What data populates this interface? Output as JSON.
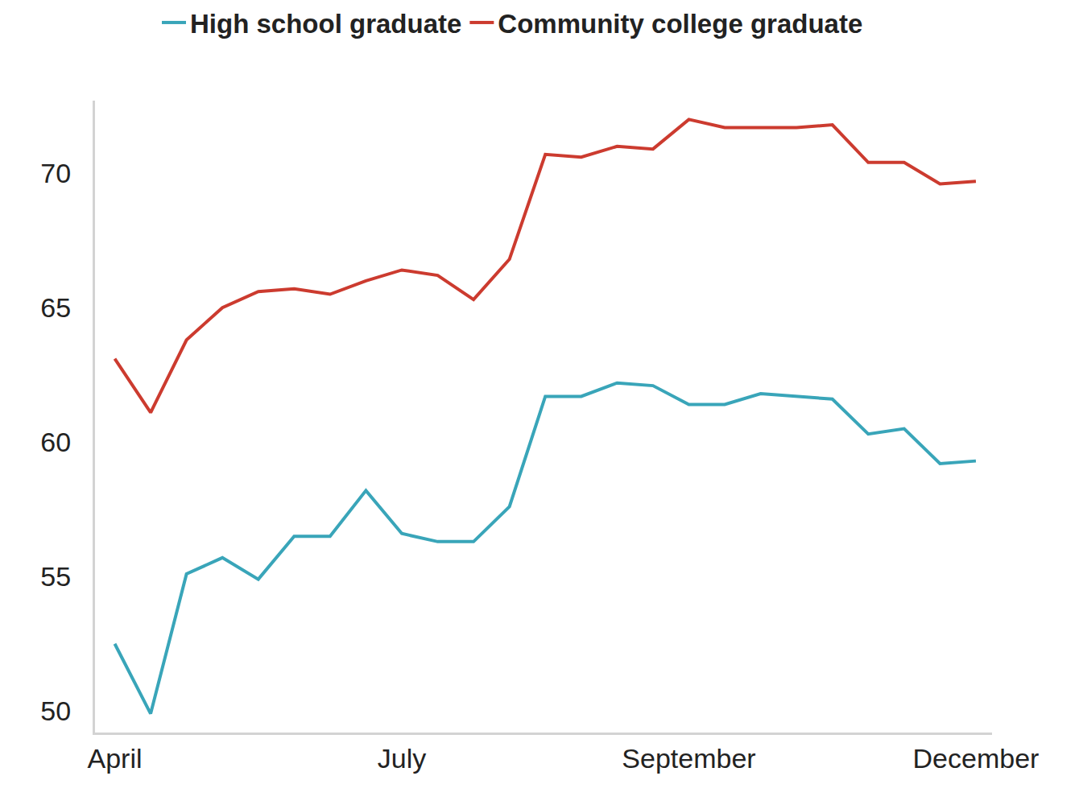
{
  "chart_data": {
    "type": "line",
    "categories": [
      "April",
      null,
      null,
      null,
      null,
      null,
      null,
      null,
      "July",
      null,
      null,
      null,
      null,
      null,
      null,
      null,
      "September",
      null,
      null,
      null,
      null,
      null,
      null,
      null,
      "December"
    ],
    "series": [
      {
        "name": "High school graduate",
        "color": "#39a5b9",
        "values": [
          52.5,
          49.9,
          55.1,
          55.7,
          54.9,
          56.5,
          56.5,
          58.2,
          56.6,
          56.3,
          56.3,
          57.6,
          61.7,
          61.7,
          62.2,
          62.1,
          61.4,
          61.4,
          61.8,
          61.7,
          61.6,
          60.3,
          60.5,
          59.2,
          59.3
        ]
      },
      {
        "name": "Community college graduate",
        "color": "#cc3b2f",
        "values": [
          63.1,
          61.1,
          63.8,
          65.0,
          65.6,
          65.7,
          65.5,
          66.0,
          66.4,
          66.2,
          65.3,
          66.8,
          70.7,
          70.6,
          71.0,
          70.9,
          72.0,
          71.7,
          71.7,
          71.7,
          71.8,
          70.4,
          70.4,
          69.6,
          69.7
        ]
      }
    ],
    "ylim": [
      49.2,
      72.7
    ],
    "yticks": [
      50,
      55,
      60,
      65,
      70
    ],
    "grid": false,
    "legend": "top"
  }
}
